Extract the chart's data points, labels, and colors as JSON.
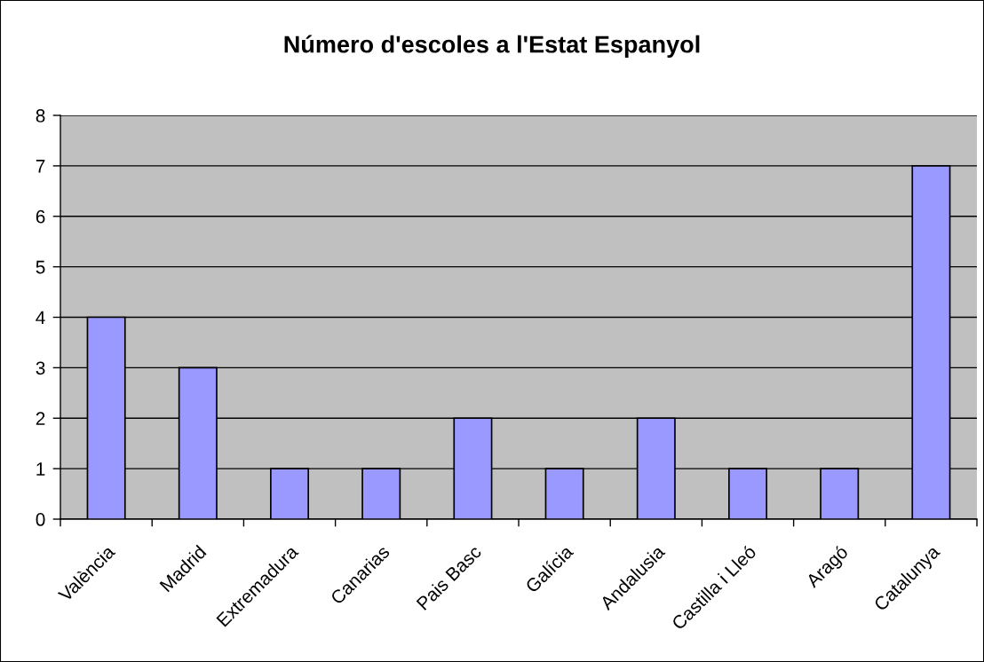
{
  "chart_data": {
    "type": "bar",
    "title": "Número d'escoles a l'Estat Espanyol",
    "categories": [
      "València",
      "Madrid",
      "Extremadura",
      "Canarias",
      "Pais Basc",
      "Galícia",
      "Andalusia",
      "Castilla i Lleó",
      "Aragó",
      "Catalunya"
    ],
    "values": [
      4,
      3,
      1,
      1,
      2,
      1,
      2,
      1,
      1,
      7
    ],
    "color": "#9999ff",
    "ylim": [
      0,
      8
    ],
    "yticks": [
      0,
      1,
      2,
      3,
      4,
      5,
      6,
      7,
      8
    ],
    "grid": "y",
    "legend": false
  }
}
